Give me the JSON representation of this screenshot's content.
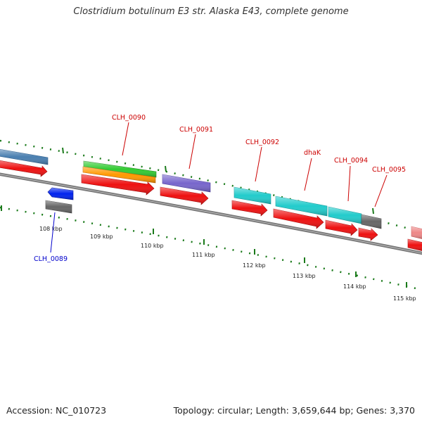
{
  "title": "Clostridium botulinum E3 str. Alaska E43, complete genome",
  "footer": {
    "accession": "Accession: NC_010723",
    "topology": "Topology: circular; Length: 3,659,644 bp; Genes: 3,370"
  },
  "ticks": [
    "108 kbp",
    "109 kbp",
    "110 kbp",
    "111 kbp",
    "112 kbp",
    "113 kbp",
    "114 kbp",
    "115 kbp"
  ],
  "gene_labels": [
    {
      "text": "CLH_0089",
      "color": "#0000cc"
    },
    {
      "text": "CLH_0090",
      "color": "#cc0000"
    },
    {
      "text": "CLH_0091",
      "color": "#cc0000"
    },
    {
      "text": "CLH_0092",
      "color": "#cc0000"
    },
    {
      "text": "dhaK",
      "color": "#cc0000"
    },
    {
      "text": "CLH_0094",
      "color": "#cc0000"
    },
    {
      "text": "CLH_0095",
      "color": "#cc0000"
    }
  ],
  "colors": {
    "cds_red": "#ee1111",
    "blue": "#0022ee",
    "green": "#33cc33",
    "orange": "#ff9900",
    "purple": "#7766cc",
    "cyan": "#22cccc",
    "grey": "#666666",
    "steelblue": "#4a7fb0",
    "pink": "#ee8888",
    "tick_green": "#1a7a1a",
    "backbone": "#777777"
  }
}
